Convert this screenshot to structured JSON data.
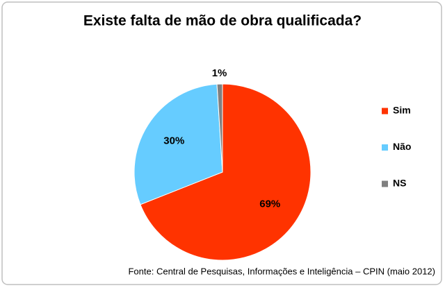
{
  "chart_data": {
    "type": "pie",
    "title": "Existe falta de mão de obra qualificada?",
    "categories": [
      "Sim",
      "Não",
      "NS"
    ],
    "values": [
      69,
      30,
      1
    ],
    "value_labels": [
      "69%",
      "30%",
      "1%"
    ],
    "colors": [
      "#ff3300",
      "#66ccff",
      "#808080"
    ],
    "legend": "right",
    "source": "Fonte: Central de Pesquisas, Informações e Inteligência – CPIN (maio 2012)"
  }
}
